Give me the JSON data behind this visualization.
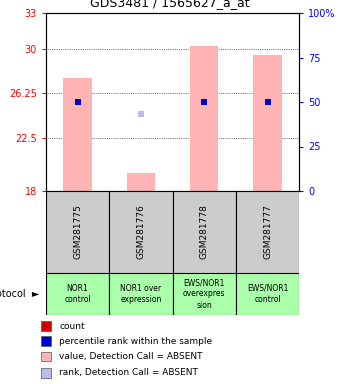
{
  "title": "GDS3481 / 1565627_a_at",
  "samples": [
    "GSM281775",
    "GSM281776",
    "GSM281778",
    "GSM281777"
  ],
  "protocols": [
    "NOR1\ncontrol",
    "NOR1 over\nexpression",
    "EWS/NOR1\noverexpres\nsion",
    "EWS/NOR1\ncontrol"
  ],
  "bar_values": [
    27.5,
    19.5,
    30.2,
    29.5
  ],
  "bar_color": "#FFB3B3",
  "absent_rank_dots": [
    null,
    24.5,
    null,
    null
  ],
  "absent_rank_color": "#BBBBEE",
  "percentile_dots": [
    50.0,
    null,
    50.0,
    50.0
  ],
  "percentile_dot_color": "#0000CC",
  "ylim_left": [
    18,
    33
  ],
  "yticks_left": [
    18,
    22.5,
    26.25,
    30,
    33
  ],
  "ylim_right": [
    0,
    100
  ],
  "yticks_right": [
    0,
    25,
    50,
    75,
    100
  ],
  "ytick_labels_right": [
    "0",
    "25",
    "50",
    "75",
    "100%"
  ],
  "hlines": [
    22.5,
    26.25,
    30
  ],
  "legend_items": [
    {
      "color": "#CC0000",
      "label": "count"
    },
    {
      "color": "#0000CC",
      "label": "percentile rank within the sample"
    },
    {
      "color": "#FFB3B3",
      "label": "value, Detection Call = ABSENT"
    },
    {
      "color": "#BBBBEE",
      "label": "rank, Detection Call = ABSENT"
    }
  ]
}
